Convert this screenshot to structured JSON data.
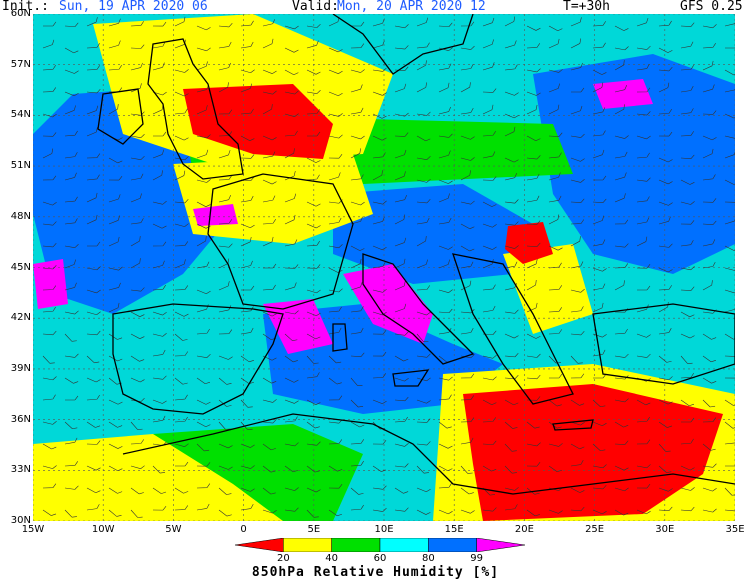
{
  "header": {
    "init_label": "Init.:",
    "init_value": "Sun, 19 APR 2020  06",
    "valid_label": "Valid:",
    "valid_value": "Mon, 20 APR 2020  12",
    "lead": "T=+30h",
    "model": "GFS 0.25"
  },
  "axes": {
    "lat_labels": [
      "60N",
      "57N",
      "54N",
      "51N",
      "48N",
      "45N",
      "42N",
      "39N",
      "36N",
      "33N",
      "30N"
    ],
    "lon_labels": [
      "15W",
      "10W",
      "5W",
      "0",
      "5E",
      "10E",
      "15E",
      "20E",
      "25E",
      "30E",
      "35E"
    ]
  },
  "legend": {
    "title": "850hPa Relative Humidity [%]",
    "ticks": [
      "20",
      "40",
      "60",
      "80",
      "99"
    ],
    "colors": [
      "#ff0000",
      "#ffff00",
      "#00e000",
      "#00ffff",
      "#0070ff",
      "#ff00ff"
    ]
  },
  "palette": {
    "dry": "#ff0000",
    "dryish": "#ffff00",
    "mid": "#00e000",
    "moist": "#00ffff",
    "wet": "#0070ff",
    "saturated": "#ff00ff",
    "background": "#00d8d8"
  }
}
